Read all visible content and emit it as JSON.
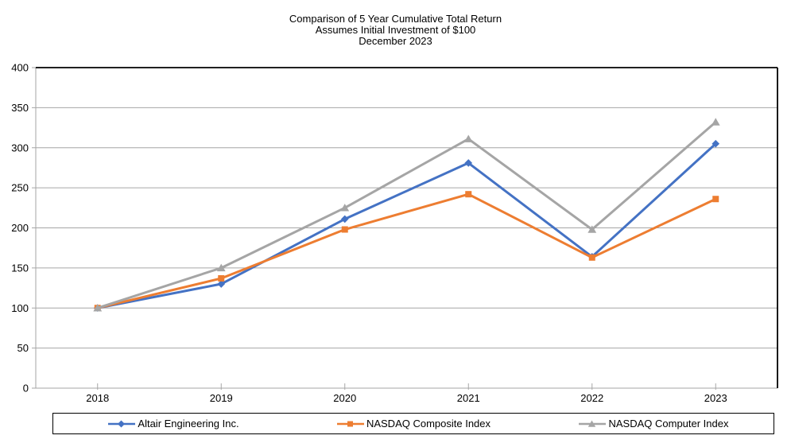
{
  "chart": {
    "title_lines": [
      "Comparison of 5 Year Cumulative Total Return",
      "Assumes Initial Investment of $100",
      "December 2023"
    ]
  },
  "chart_data": {
    "type": "line",
    "x": [
      "2018",
      "2019",
      "2020",
      "2021",
      "2022",
      "2023"
    ],
    "series": [
      {
        "name": "Altair Engineering Inc.",
        "color": "#4472C4",
        "marker": "diamond",
        "values": [
          100,
          130,
          211,
          281,
          164,
          305
        ]
      },
      {
        "name": "NASDAQ Composite Index",
        "color": "#ED7D31",
        "marker": "square",
        "values": [
          100,
          137,
          198,
          242,
          163,
          236
        ]
      },
      {
        "name": "NASDAQ Computer Index",
        "color": "#A5A5A5",
        "marker": "triangle",
        "values": [
          100,
          150,
          225,
          311,
          198,
          332
        ]
      }
    ],
    "ylim": [
      0,
      400
    ],
    "yticks": [
      0,
      50,
      100,
      150,
      200,
      250,
      300,
      350,
      400
    ],
    "grid": "horizontal",
    "legend_position": "bottom",
    "colors": {
      "axis": "#A6A6A6",
      "grid": "#A6A6A6",
      "plot_border": "#000000",
      "text": "#000000"
    }
  }
}
